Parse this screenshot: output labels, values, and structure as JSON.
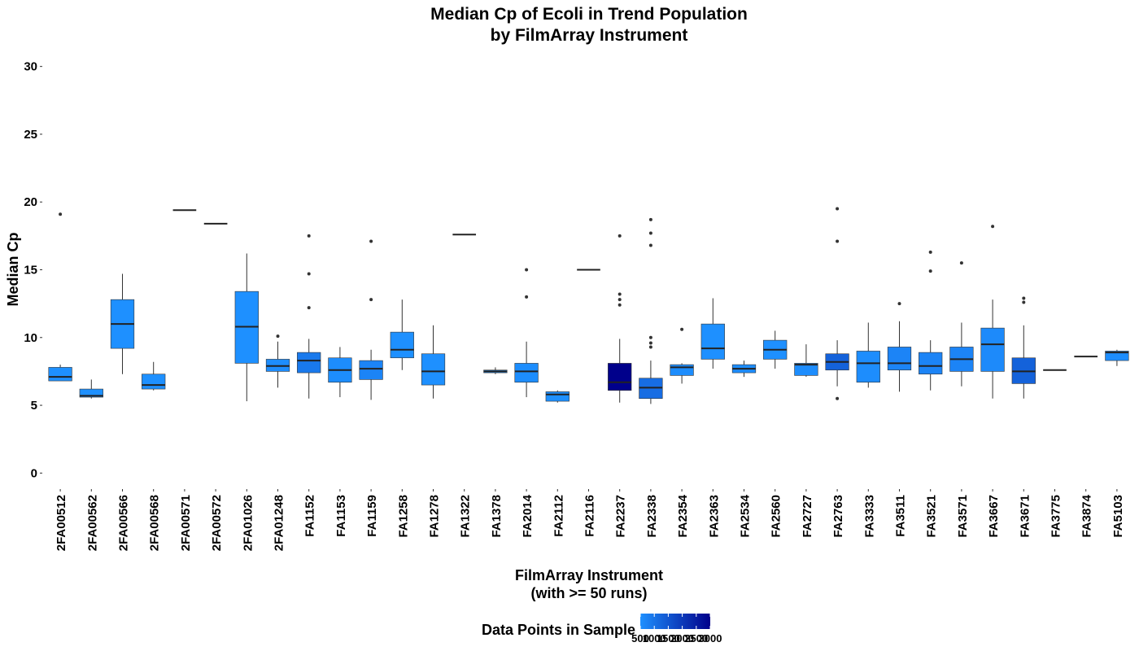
{
  "chart_data": {
    "type": "box",
    "title": [
      "Median Cp of Ecoli in Trend Population",
      "by FilmArray Instrument"
    ],
    "xlabel": [
      "FilmArray Instrument",
      "(with >= 50 runs)"
    ],
    "ylabel": "Median Cp",
    "ylim": [
      -1,
      31
    ],
    "yticks": [
      0,
      5,
      10,
      15,
      20,
      25,
      30
    ],
    "grid": false,
    "legend": {
      "title": "Data Points in Sample",
      "position": "bottom",
      "tick_labels": [
        "500",
        "1000",
        "1500",
        "2000",
        "2500",
        "3000"
      ],
      "range": [
        500,
        3000
      ],
      "color_low": "#1e90ff",
      "color_high": "#00008b"
    },
    "categories": [
      "2FA00512",
      "2FA00562",
      "2FA00566",
      "2FA00568",
      "2FA00571",
      "2FA00572",
      "2FA01026",
      "2FA01248",
      "FA1152",
      "FA1153",
      "FA1159",
      "FA1258",
      "FA1278",
      "FA1322",
      "FA1378",
      "FA2014",
      "FA2112",
      "FA2116",
      "FA2237",
      "FA2338",
      "FA2354",
      "FA2363",
      "FA2534",
      "FA2560",
      "FA2727",
      "FA2763",
      "FA3333",
      "FA3511",
      "FA3521",
      "FA3571",
      "FA3667",
      "FA3671",
      "FA3775",
      "FA3874",
      "FA5103"
    ],
    "boxes": [
      {
        "whisker_low": 6.8,
        "q1": 6.8,
        "median": 7.1,
        "q3": 7.8,
        "whisker_high": 8.0,
        "outliers": [
          19.1
        ],
        "points": 500
      },
      {
        "whisker_low": 5.5,
        "q1": 5.6,
        "median": 5.7,
        "q3": 6.2,
        "whisker_high": 6.9,
        "outliers": [],
        "points": 500
      },
      {
        "whisker_low": 7.3,
        "q1": 9.2,
        "median": 11.0,
        "q3": 12.8,
        "whisker_high": 14.7,
        "outliers": [],
        "points": 500
      },
      {
        "whisker_low": 6.1,
        "q1": 6.2,
        "median": 6.5,
        "q3": 7.3,
        "whisker_high": 8.2,
        "outliers": [],
        "points": 500
      },
      {
        "whisker_low": 19.4,
        "q1": 19.4,
        "median": 19.4,
        "q3": 19.4,
        "whisker_high": 19.4,
        "outliers": [],
        "points": 500
      },
      {
        "whisker_low": 18.4,
        "q1": 18.4,
        "median": 18.4,
        "q3": 18.4,
        "whisker_high": 18.4,
        "outliers": [],
        "points": 500
      },
      {
        "whisker_low": 5.3,
        "q1": 8.1,
        "median": 10.8,
        "q3": 13.4,
        "whisker_high": 16.2,
        "outliers": [],
        "points": 500
      },
      {
        "whisker_low": 6.3,
        "q1": 7.5,
        "median": 7.9,
        "q3": 8.4,
        "whisker_high": 9.7,
        "outliers": [
          10.1
        ],
        "points": 550
      },
      {
        "whisker_low": 5.5,
        "q1": 7.4,
        "median": 8.3,
        "q3": 8.9,
        "whisker_high": 9.9,
        "outliers": [
          12.2,
          14.7,
          17.5
        ],
        "points": 900
      },
      {
        "whisker_low": 5.6,
        "q1": 6.7,
        "median": 7.6,
        "q3": 8.5,
        "whisker_high": 9.3,
        "outliers": [],
        "points": 550
      },
      {
        "whisker_low": 5.4,
        "q1": 6.9,
        "median": 7.7,
        "q3": 8.3,
        "whisker_high": 9.1,
        "outliers": [
          12.8,
          17.1
        ],
        "points": 700
      },
      {
        "whisker_low": 7.6,
        "q1": 8.5,
        "median": 9.1,
        "q3": 10.4,
        "whisker_high": 12.8,
        "outliers": [],
        "points": 500
      },
      {
        "whisker_low": 5.5,
        "q1": 6.5,
        "median": 7.5,
        "q3": 8.8,
        "whisker_high": 10.9,
        "outliers": [],
        "points": 500
      },
      {
        "whisker_low": 17.6,
        "q1": 17.6,
        "median": 17.6,
        "q3": 17.6,
        "whisker_high": 17.6,
        "outliers": [],
        "points": 500
      },
      {
        "whisker_low": 7.3,
        "q1": 7.4,
        "median": 7.5,
        "q3": 7.6,
        "whisker_high": 7.8,
        "outliers": [],
        "points": 500
      },
      {
        "whisker_low": 5.6,
        "q1": 6.7,
        "median": 7.5,
        "q3": 8.1,
        "whisker_high": 9.7,
        "outliers": [
          13.0,
          15.0
        ],
        "points": 550
      },
      {
        "whisker_low": 5.2,
        "q1": 5.3,
        "median": 5.8,
        "q3": 6.0,
        "whisker_high": 6.1,
        "outliers": [],
        "points": 500
      },
      {
        "whisker_low": 15.0,
        "q1": 15.0,
        "median": 15.0,
        "q3": 15.0,
        "whisker_high": 15.0,
        "outliers": [],
        "points": 500
      },
      {
        "whisker_low": 5.2,
        "q1": 6.1,
        "median": 6.7,
        "q3": 8.1,
        "whisker_high": 9.9,
        "outliers": [
          12.4,
          12.8,
          13.2,
          17.5
        ],
        "points": 3000
      },
      {
        "whisker_low": 5.1,
        "q1": 5.5,
        "median": 6.3,
        "q3": 7.0,
        "whisker_high": 8.3,
        "outliers": [
          9.3,
          9.6,
          10.0,
          16.8,
          17.7,
          18.7
        ],
        "points": 1100
      },
      {
        "whisker_low": 6.6,
        "q1": 7.2,
        "median": 7.8,
        "q3": 8.0,
        "whisker_high": 8.1,
        "outliers": [
          10.6
        ],
        "points": 550
      },
      {
        "whisker_low": 7.7,
        "q1": 8.4,
        "median": 9.2,
        "q3": 11.0,
        "whisker_high": 12.9,
        "outliers": [],
        "points": 500
      },
      {
        "whisker_low": 7.1,
        "q1": 7.4,
        "median": 7.7,
        "q3": 8.0,
        "whisker_high": 8.3,
        "outliers": [],
        "points": 550
      },
      {
        "whisker_low": 7.7,
        "q1": 8.4,
        "median": 9.1,
        "q3": 9.8,
        "whisker_high": 10.5,
        "outliers": [],
        "points": 500
      },
      {
        "whisker_low": 7.1,
        "q1": 7.2,
        "median": 8.0,
        "q3": 8.1,
        "whisker_high": 9.5,
        "outliers": [],
        "points": 550
      },
      {
        "whisker_low": 6.4,
        "q1": 7.6,
        "median": 8.2,
        "q3": 8.8,
        "whisker_high": 9.8,
        "outliers": [
          5.5,
          17.1,
          19.5
        ],
        "points": 1300
      },
      {
        "whisker_low": 6.3,
        "q1": 6.7,
        "median": 8.1,
        "q3": 9.0,
        "whisker_high": 11.1,
        "outliers": [],
        "points": 550
      },
      {
        "whisker_low": 6.0,
        "q1": 7.6,
        "median": 8.1,
        "q3": 9.3,
        "whisker_high": 11.2,
        "outliers": [
          12.5
        ],
        "points": 700
      },
      {
        "whisker_low": 6.1,
        "q1": 7.3,
        "median": 7.9,
        "q3": 8.9,
        "whisker_high": 9.8,
        "outliers": [
          14.9,
          16.3
        ],
        "points": 700
      },
      {
        "whisker_low": 6.4,
        "q1": 7.5,
        "median": 8.4,
        "q3": 9.3,
        "whisker_high": 11.1,
        "outliers": [
          15.5
        ],
        "points": 700
      },
      {
        "whisker_low": 5.5,
        "q1": 7.5,
        "median": 9.5,
        "q3": 10.7,
        "whisker_high": 12.8,
        "outliers": [
          18.2
        ],
        "points": 600
      },
      {
        "whisker_low": 5.5,
        "q1": 6.6,
        "median": 7.5,
        "q3": 8.5,
        "whisker_high": 10.9,
        "outliers": [
          12.6,
          12.9
        ],
        "points": 1300
      },
      {
        "whisker_low": 7.6,
        "q1": 7.6,
        "median": 7.6,
        "q3": 7.6,
        "whisker_high": 7.6,
        "outliers": [],
        "points": 500
      },
      {
        "whisker_low": 8.6,
        "q1": 8.6,
        "median": 8.6,
        "q3": 8.6,
        "whisker_high": 8.6,
        "outliers": [],
        "points": 500
      },
      {
        "whisker_low": 7.9,
        "q1": 8.3,
        "median": 8.9,
        "q3": 9.0,
        "whisker_high": 9.1,
        "outliers": [],
        "points": 550
      }
    ]
  }
}
